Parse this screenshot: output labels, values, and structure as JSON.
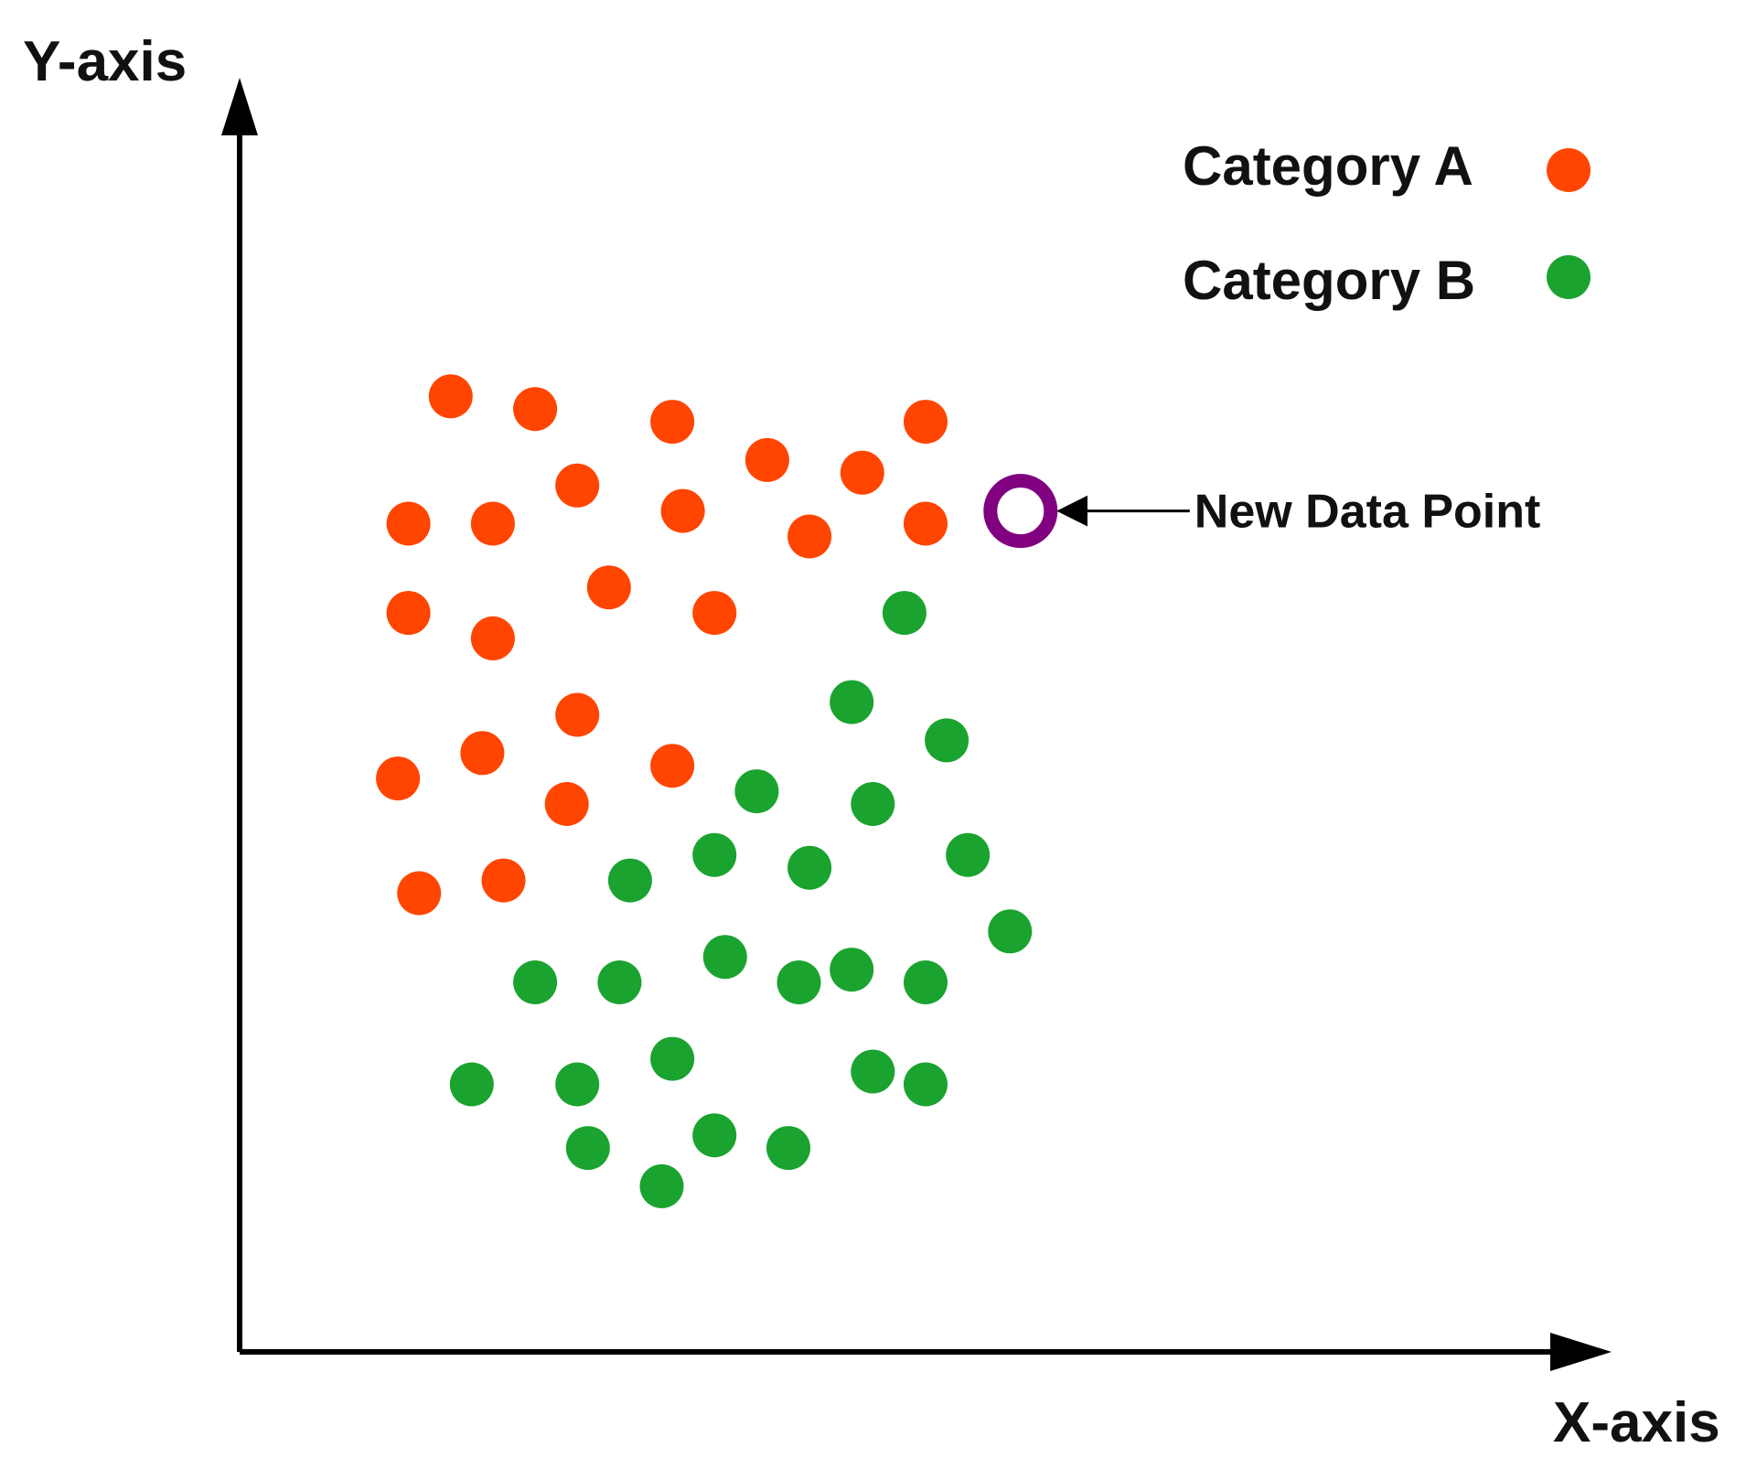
{
  "chart_data": {
    "type": "scatter",
    "xlabel": "X-axis",
    "ylabel": "Y-axis",
    "grid": false,
    "ticks": false,
    "legend_placement": "top-right",
    "xlim": [
      0,
      13
    ],
    "ylim": [
      0,
      10
    ],
    "series": [
      {
        "name": "Category A",
        "color": "#ff4500",
        "points": [
          [
            2.0,
            7.5
          ],
          [
            2.8,
            7.4
          ],
          [
            4.1,
            7.3
          ],
          [
            5.0,
            7.0
          ],
          [
            5.9,
            6.9
          ],
          [
            6.5,
            7.3
          ],
          [
            3.2,
            6.8
          ],
          [
            4.2,
            6.6
          ],
          [
            1.6,
            6.5
          ],
          [
            2.4,
            6.5
          ],
          [
            5.4,
            6.4
          ],
          [
            6.5,
            6.5
          ],
          [
            3.5,
            6.0
          ],
          [
            4.5,
            5.8
          ],
          [
            1.6,
            5.8
          ],
          [
            2.4,
            5.6
          ],
          [
            3.2,
            5.0
          ],
          [
            4.1,
            4.6
          ],
          [
            1.5,
            4.5
          ],
          [
            2.3,
            4.7
          ],
          [
            3.1,
            4.3
          ],
          [
            1.7,
            3.6
          ],
          [
            2.5,
            3.7
          ]
        ]
      },
      {
        "name": "Category B",
        "color": "#1aa32f",
        "points": [
          [
            6.3,
            5.8
          ],
          [
            5.8,
            5.1
          ],
          [
            6.7,
            4.8
          ],
          [
            4.9,
            4.4
          ],
          [
            6.0,
            4.3
          ],
          [
            6.9,
            3.9
          ],
          [
            3.7,
            3.7
          ],
          [
            4.5,
            3.9
          ],
          [
            5.4,
            3.8
          ],
          [
            7.3,
            3.3
          ],
          [
            4.6,
            3.1
          ],
          [
            5.8,
            3.0
          ],
          [
            2.8,
            2.9
          ],
          [
            3.6,
            2.9
          ],
          [
            5.3,
            2.9
          ],
          [
            6.5,
            2.9
          ],
          [
            4.1,
            2.3
          ],
          [
            6.0,
            2.2
          ],
          [
            6.5,
            2.1
          ],
          [
            2.2,
            2.1
          ],
          [
            3.2,
            2.1
          ],
          [
            4.5,
            1.7
          ],
          [
            5.2,
            1.6
          ],
          [
            3.3,
            1.6
          ],
          [
            4.0,
            1.3
          ]
        ]
      }
    ],
    "annotation": {
      "label": "New Data Point",
      "point": [
        7.4,
        6.6
      ],
      "color": "#800080"
    }
  }
}
